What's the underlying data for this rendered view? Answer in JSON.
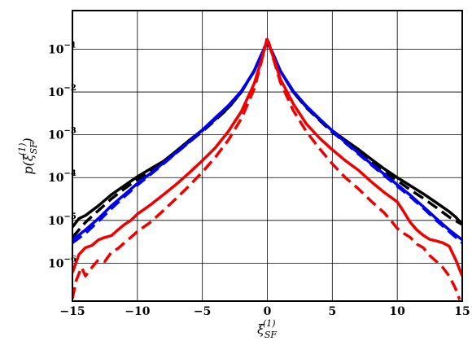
{
  "chart_data": {
    "type": "line",
    "title": "",
    "xlabel": "ξ_SF^(1)",
    "ylabel": "p(ξ_SF^(1))",
    "xlim": [
      -15,
      15
    ],
    "ylim": [
      1.3e-07,
      0.8
    ],
    "yscale": "log",
    "grid": true,
    "legend": "none",
    "x_ticks": [
      -15,
      -10,
      -5,
      0,
      5,
      10,
      15
    ],
    "x_tick_labels": [
      "−15",
      "−10",
      "−5",
      "0",
      "5",
      "10",
      "15"
    ],
    "y_ticks": [
      1e-06,
      1e-05,
      0.0001,
      0.001,
      0.01,
      0.1
    ],
    "y_tick_labels": [
      {
        "base": "10",
        "exp": "−6"
      },
      {
        "base": "10",
        "exp": "−5"
      },
      {
        "base": "10",
        "exp": "−4"
      },
      {
        "base": "10",
        "exp": "−3"
      },
      {
        "base": "10",
        "exp": "−2"
      },
      {
        "base": "10",
        "exp": "−1"
      }
    ],
    "series": [
      {
        "color": "#000000",
        "dash": "solid",
        "points": [
          [
            -15,
            7e-06
          ],
          [
            -14.5,
            1.1e-05
          ],
          [
            -14,
            1.3e-05
          ],
          [
            -13,
            2.2e-05
          ],
          [
            -12,
            4e-05
          ],
          [
            -11,
            6.5e-05
          ],
          [
            -10,
            0.000105
          ],
          [
            -9,
            0.00016
          ],
          [
            -8,
            0.00024
          ],
          [
            -7,
            0.00042
          ],
          [
            -6,
            0.00075
          ],
          [
            -5,
            0.0013
          ],
          [
            -4,
            0.0023
          ],
          [
            -3,
            0.0043
          ],
          [
            -2,
            0.01
          ],
          [
            -1,
            0.032
          ],
          [
            -0.5,
            0.07
          ],
          [
            0,
            0.15
          ],
          [
            0.5,
            0.07
          ],
          [
            1,
            0.031
          ],
          [
            2,
            0.01
          ],
          [
            3,
            0.0045
          ],
          [
            4,
            0.0023
          ],
          [
            5,
            0.00125
          ],
          [
            6,
            0.00075
          ],
          [
            7,
            0.00046
          ],
          [
            8,
            0.00027
          ],
          [
            9,
            0.00016
          ],
          [
            10,
            0.0001
          ],
          [
            11,
            6.5e-05
          ],
          [
            12,
            4.2e-05
          ],
          [
            13,
            2.6e-05
          ],
          [
            14,
            1.6e-05
          ],
          [
            14.5,
            1.2e-05
          ],
          [
            15,
            8e-06
          ]
        ]
      },
      {
        "color": "#000000",
        "dash": "dashed",
        "points": [
          [
            -15,
            4e-06
          ],
          [
            -14,
            9e-06
          ],
          [
            -13,
            1.7e-05
          ],
          [
            -12,
            3.2e-05
          ],
          [
            -11,
            5.5e-05
          ],
          [
            -10,
            9e-05
          ],
          [
            -9,
            0.00014
          ],
          [
            -8,
            0.00022
          ],
          [
            -7,
            0.00038
          ],
          [
            -6,
            0.00068
          ],
          [
            -5,
            0.0012
          ],
          [
            -4,
            0.0022
          ],
          [
            -3,
            0.0042
          ],
          [
            -2,
            0.01
          ],
          [
            -1,
            0.031
          ],
          [
            -0.5,
            0.07
          ],
          [
            0,
            0.155
          ],
          [
            0.5,
            0.07
          ],
          [
            1,
            0.031
          ],
          [
            2,
            0.01
          ],
          [
            3,
            0.0043
          ],
          [
            4,
            0.0022
          ],
          [
            5,
            0.00115
          ],
          [
            6,
            0.00068
          ],
          [
            7,
            0.0004
          ],
          [
            8,
            0.00023
          ],
          [
            9,
            0.000135
          ],
          [
            10,
            8.5e-05
          ],
          [
            11,
            5.2e-05
          ],
          [
            12,
            3.3e-05
          ],
          [
            13,
            2e-05
          ],
          [
            14,
            1.2e-05
          ],
          [
            15,
            8e-06
          ]
        ]
      },
      {
        "color": "#0000ee",
        "dash": "solid",
        "points": [
          [
            -15,
            3.5e-06
          ],
          [
            -14,
            6e-06
          ],
          [
            -13,
            1.1e-05
          ],
          [
            -12,
            2.2e-05
          ],
          [
            -11,
            4e-05
          ],
          [
            -10,
            7.3e-05
          ],
          [
            -9,
            0.000125
          ],
          [
            -8,
            0.00022
          ],
          [
            -7,
            0.00039
          ],
          [
            -6,
            0.0007
          ],
          [
            -5,
            0.0013
          ],
          [
            -4,
            0.0025
          ],
          [
            -3,
            0.0048
          ],
          [
            -2,
            0.0105
          ],
          [
            -1,
            0.031
          ],
          [
            -0.5,
            0.07
          ],
          [
            0,
            0.145
          ],
          [
            0.5,
            0.07
          ],
          [
            1,
            0.031
          ],
          [
            2,
            0.0105
          ],
          [
            3,
            0.0047
          ],
          [
            4,
            0.0024
          ],
          [
            5,
            0.00125
          ],
          [
            6,
            0.00068
          ],
          [
            7,
            0.00038
          ],
          [
            8,
            0.00021
          ],
          [
            9,
            0.00012
          ],
          [
            10,
            6.8e-05
          ],
          [
            11,
            3.9e-05
          ],
          [
            12,
            2.1e-05
          ],
          [
            13,
            1.1e-05
          ],
          [
            14,
            6e-06
          ],
          [
            15,
            3.5e-06
          ]
        ]
      },
      {
        "color": "#0000ee",
        "dash": "dashed",
        "points": [
          [
            -15,
            3e-06
          ],
          [
            -14,
            5e-06
          ],
          [
            -13,
            9.5e-06
          ],
          [
            -12,
            1.9e-05
          ],
          [
            -11,
            3.6e-05
          ],
          [
            -10,
            6.7e-05
          ],
          [
            -9,
            0.000118
          ],
          [
            -8,
            0.00021
          ],
          [
            -7,
            0.00038
          ],
          [
            -6,
            0.00068
          ],
          [
            -5,
            0.00125
          ],
          [
            -4,
            0.0024
          ],
          [
            -3,
            0.0047
          ],
          [
            -2,
            0.0105
          ],
          [
            -1,
            0.031
          ],
          [
            -0.5,
            0.07
          ],
          [
            0,
            0.145
          ],
          [
            0.5,
            0.07
          ],
          [
            1,
            0.031
          ],
          [
            2,
            0.0105
          ],
          [
            3,
            0.0046
          ],
          [
            4,
            0.00235
          ],
          [
            5,
            0.0012
          ],
          [
            6,
            0.00065
          ],
          [
            7,
            0.00036
          ],
          [
            8,
            0.0002
          ],
          [
            9,
            0.000112
          ],
          [
            10,
            6.3e-05
          ],
          [
            11,
            3.6e-05
          ],
          [
            12,
            1.95e-05
          ],
          [
            13,
            1e-05
          ],
          [
            14,
            5.5e-06
          ],
          [
            15,
            3e-06
          ]
        ]
      },
      {
        "color": "#ee0000",
        "dash": "solid",
        "points": [
          [
            -15,
            6e-07
          ],
          [
            -14.5,
            1.6e-06
          ],
          [
            -14,
            2.3e-06
          ],
          [
            -13.5,
            2.6e-06
          ],
          [
            -13,
            3.5e-06
          ],
          [
            -12.5,
            4e-06
          ],
          [
            -12,
            4.4e-06
          ],
          [
            -11.5,
            6e-06
          ],
          [
            -11,
            8e-06
          ],
          [
            -10.5,
            1e-05
          ],
          [
            -10,
            1.4e-05
          ],
          [
            -9,
            2.3e-05
          ],
          [
            -8,
            4e-05
          ],
          [
            -7,
            7e-05
          ],
          [
            -6,
            0.00013
          ],
          [
            -5,
            0.00025
          ],
          [
            -4,
            0.0005
          ],
          [
            -3,
            0.0012
          ],
          [
            -2,
            0.0035
          ],
          [
            -1,
            0.016
          ],
          [
            -0.5,
            0.05
          ],
          [
            0,
            0.17
          ],
          [
            0.5,
            0.06
          ],
          [
            1,
            0.02
          ],
          [
            2,
            0.0053
          ],
          [
            3,
            0.0018
          ],
          [
            4,
            0.00085
          ],
          [
            5,
            0.00045
          ],
          [
            6,
            0.00025
          ],
          [
            7,
            0.00015
          ],
          [
            8,
            8e-05
          ],
          [
            9,
            4.5e-05
          ],
          [
            10,
            2.7e-05
          ],
          [
            10.5,
            1.6e-05
          ],
          [
            11,
            9e-06
          ],
          [
            11.5,
            6e-06
          ],
          [
            12,
            4.5e-06
          ],
          [
            12.5,
            3.6e-06
          ],
          [
            13,
            3.3e-06
          ],
          [
            13.5,
            3e-06
          ],
          [
            14,
            2.5e-06
          ],
          [
            14.5,
            1.2e-06
          ],
          [
            15,
            5e-07
          ]
        ]
      },
      {
        "color": "#ee0000",
        "dash": "dashed",
        "points": [
          [
            -15,
            1.5e-07
          ],
          [
            -14.7,
            4e-07
          ],
          [
            -14.3,
            8e-07
          ],
          [
            -14,
            5e-07
          ],
          [
            -13.5,
            8e-07
          ],
          [
            -13,
            1.2e-06
          ],
          [
            -12.5,
            1.1e-06
          ],
          [
            -12,
            1.8e-06
          ],
          [
            -11.5,
            2.2e-06
          ],
          [
            -11,
            3e-06
          ],
          [
            -10.5,
            4e-06
          ],
          [
            -10,
            5.5e-06
          ],
          [
            -9,
            9e-06
          ],
          [
            -8,
            1.7e-05
          ],
          [
            -7,
            3.3e-05
          ],
          [
            -6,
            6.5e-05
          ],
          [
            -5,
            0.000135
          ],
          [
            -4,
            0.0003
          ],
          [
            -3,
            0.00075
          ],
          [
            -2,
            0.0024
          ],
          [
            -1,
            0.012
          ],
          [
            -0.5,
            0.045
          ],
          [
            0,
            0.19
          ],
          [
            0.5,
            0.055
          ],
          [
            1,
            0.017
          ],
          [
            2,
            0.0037
          ],
          [
            3,
            0.0012
          ],
          [
            4,
            0.00048
          ],
          [
            5,
            0.00021
          ],
          [
            6,
            0.0001
          ],
          [
            7,
            5.5e-05
          ],
          [
            8,
            2.8e-05
          ],
          [
            9,
            1.5e-05
          ],
          [
            9.5,
            1e-05
          ],
          [
            10,
            6.5e-06
          ],
          [
            10.5,
            5e-06
          ],
          [
            11,
            4e-06
          ],
          [
            11.5,
            2.8e-06
          ],
          [
            12,
            2.3e-06
          ],
          [
            12.5,
            1.5e-06
          ],
          [
            13,
            1.1e-06
          ],
          [
            13.5,
            8e-07
          ],
          [
            14,
            5e-07
          ],
          [
            14.5,
            2.5e-07
          ],
          [
            14.8,
            1.4e-07
          ]
        ]
      }
    ]
  }
}
